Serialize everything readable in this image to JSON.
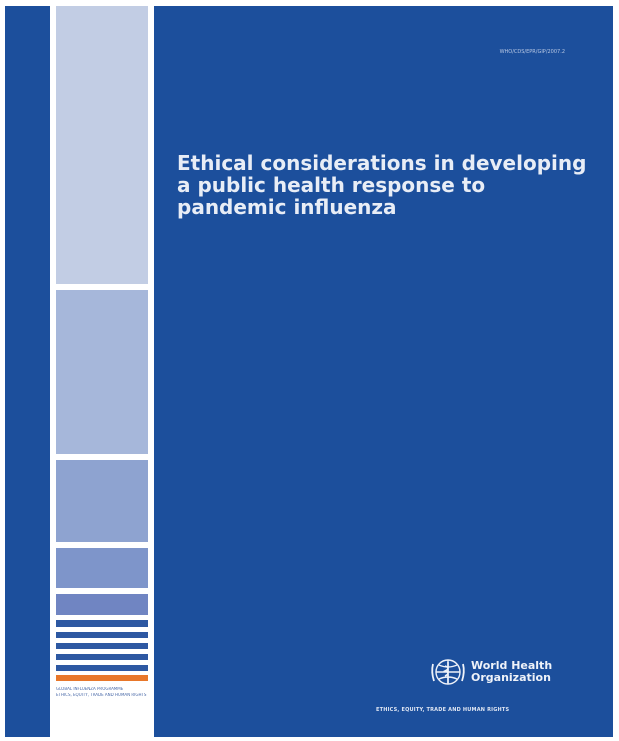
{
  "cover": {
    "title": "Ethical considerations in developing a public health response to pandemic influenza",
    "document_number": "WHO/CDS/EPR/GIP/2007.2",
    "publisher_line1": "World Health",
    "publisher_line2": "Organization",
    "department": "ETHICS, EQUITY, TRADE AND HUMAN RIGHTS",
    "series_line1": "GLOBAL INFLUENZA PROGRAMME",
    "series_line2": "ETHICS, EQUITY, TRADE AND HUMAN RIGHTS",
    "emblem": "who-emblem-icon"
  },
  "colors": {
    "background": "#1c4f9c",
    "spine_strip": "#ffffff",
    "block_light": "#c2cde4",
    "block_mid": "#a6b7da",
    "block_deep": "#8ea3d0",
    "block_deeper": "#7e95ca",
    "stripe_blue": "#2d58a2",
    "stripe_orange": "#e8772a",
    "title_text": "#e8edf6"
  }
}
